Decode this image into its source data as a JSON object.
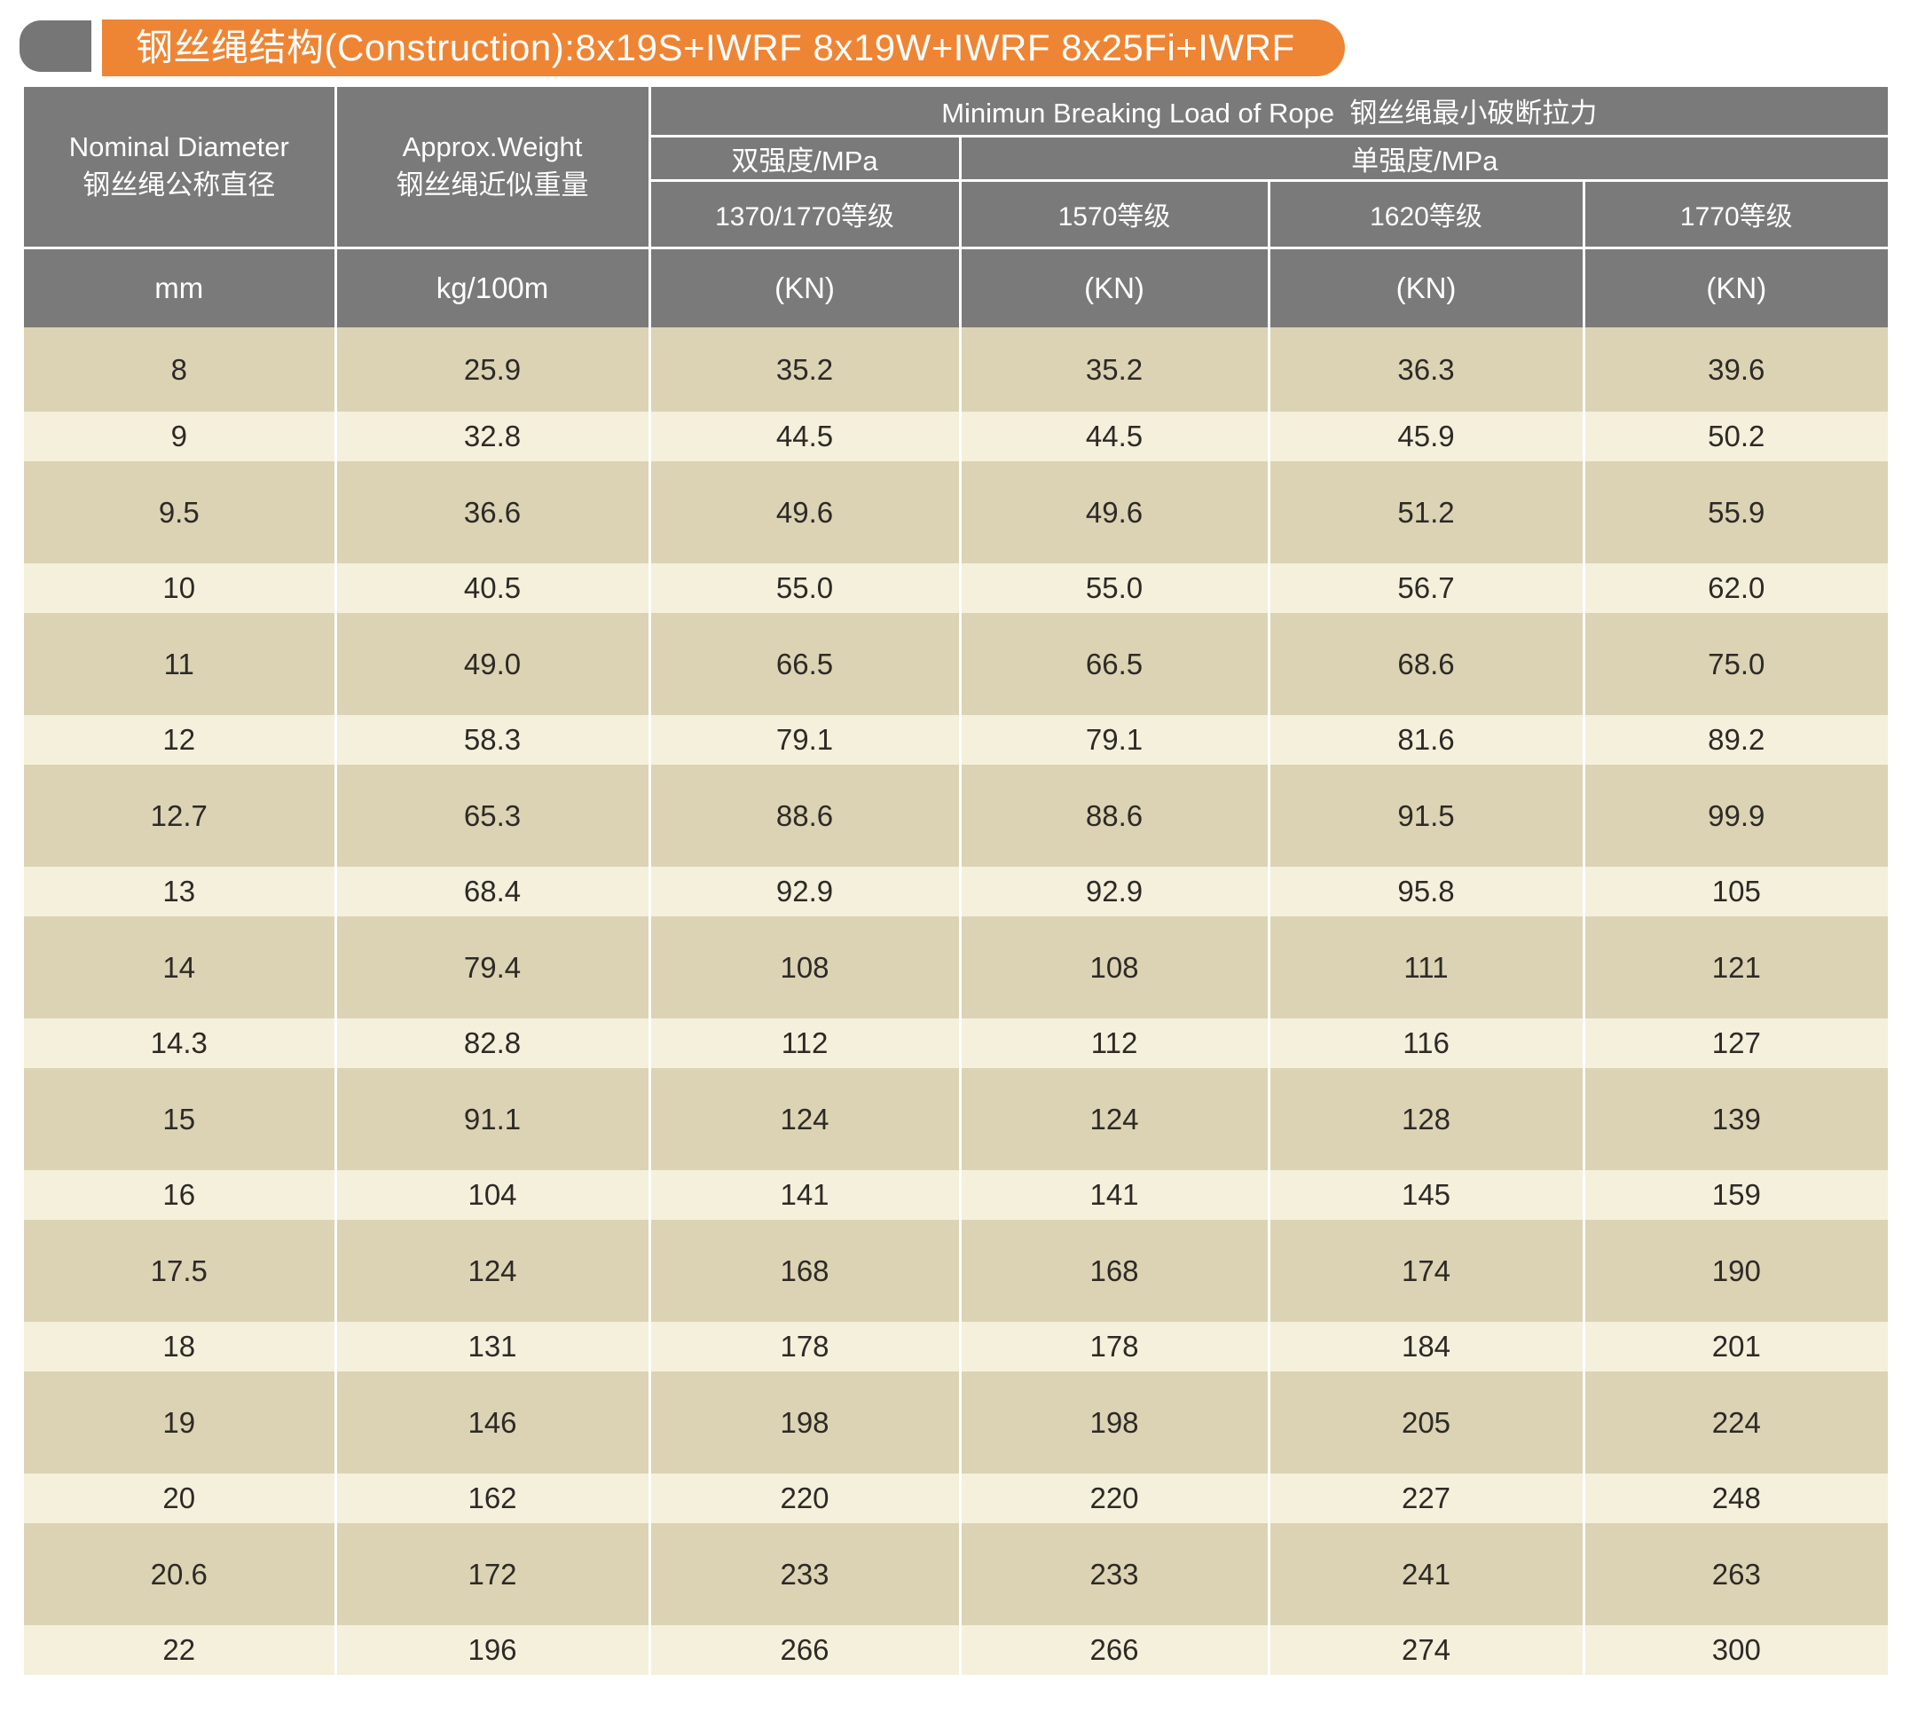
{
  "title": {
    "text": "钢丝绳结构(Construction):8x19S+IWRF 8x19W+IWRF 8x25Fi+IWRF"
  },
  "table": {
    "header": {
      "nominal": {
        "en": "Nominal Diameter",
        "zh": "钢丝绳公称直径"
      },
      "weight": {
        "en": "Approx.Weight",
        "zh": "钢丝绳近似重量"
      },
      "breaking_load": "Minimun Breaking Load of Rope  钢丝绳最小破断拉力",
      "dual_strength": "双强度/MPa",
      "single_strength": "单强度/MPa",
      "grades": [
        "1370/1770等级",
        "1570等级",
        "1620等级",
        "1770等级"
      ],
      "units": [
        "mm",
        "kg/100m",
        "(KN)",
        "(KN)",
        "(KN)",
        "(KN)"
      ]
    },
    "rows": [
      {
        "diameter": "8",
        "weight": "25.9",
        "loads": [
          "35.2",
          "35.2",
          "36.3",
          "39.6"
        ],
        "tone": "dark"
      },
      {
        "diameter": "9",
        "weight": "32.8",
        "loads": [
          "44.5",
          "44.5",
          "45.9",
          "50.2"
        ],
        "tone": "light"
      },
      {
        "diameter": "9.5",
        "weight": "36.6",
        "loads": [
          "49.6",
          "49.6",
          "51.2",
          "55.9"
        ],
        "tone": "dark"
      },
      {
        "diameter": "10",
        "weight": "40.5",
        "loads": [
          "55.0",
          "55.0",
          "56.7",
          "62.0"
        ],
        "tone": "light"
      },
      {
        "diameter": "11",
        "weight": "49.0",
        "loads": [
          "66.5",
          "66.5",
          "68.6",
          "75.0"
        ],
        "tone": "dark"
      },
      {
        "diameter": "12",
        "weight": "58.3",
        "loads": [
          "79.1",
          "79.1",
          "81.6",
          "89.2"
        ],
        "tone": "light"
      },
      {
        "diameter": "12.7",
        "weight": "65.3",
        "loads": [
          "88.6",
          "88.6",
          "91.5",
          "99.9"
        ],
        "tone": "dark"
      },
      {
        "diameter": "13",
        "weight": "68.4",
        "loads": [
          "92.9",
          "92.9",
          "95.8",
          "105"
        ],
        "tone": "light"
      },
      {
        "diameter": "14",
        "weight": "79.4",
        "loads": [
          "108",
          "108",
          "111",
          "121"
        ],
        "tone": "dark"
      },
      {
        "diameter": "14.3",
        "weight": "82.8",
        "loads": [
          "112",
          "112",
          "116",
          "127"
        ],
        "tone": "light"
      },
      {
        "diameter": "15",
        "weight": "91.1",
        "loads": [
          "124",
          "124",
          "128",
          "139"
        ],
        "tone": "dark"
      },
      {
        "diameter": "16",
        "weight": "104",
        "loads": [
          "141",
          "141",
          "145",
          "159"
        ],
        "tone": "light"
      },
      {
        "diameter": "17.5",
        "weight": "124",
        "loads": [
          "168",
          "168",
          "174",
          "190"
        ],
        "tone": "dark"
      },
      {
        "diameter": "18",
        "weight": "131",
        "loads": [
          "178",
          "178",
          "184",
          "201"
        ],
        "tone": "light"
      },
      {
        "diameter": "19",
        "weight": "146",
        "loads": [
          "198",
          "198",
          "205",
          "224"
        ],
        "tone": "dark"
      },
      {
        "diameter": "20",
        "weight": "162",
        "loads": [
          "220",
          "220",
          "227",
          "248"
        ],
        "tone": "light"
      },
      {
        "diameter": "20.6",
        "weight": "172",
        "loads": [
          "233",
          "233",
          "241",
          "263"
        ],
        "tone": "dark"
      },
      {
        "diameter": "22",
        "weight": "196",
        "loads": [
          "266",
          "266",
          "274",
          "300"
        ],
        "tone": "light"
      }
    ]
  },
  "colors": {
    "orange": "#EE8534",
    "header_gray": "#7A7A7A",
    "tab_gray": "#767676",
    "row_dark": "#DBD3B4",
    "row_light": "#F4F0DC",
    "text_dark": "#2D2A26",
    "line_white": "#FFFFFF"
  }
}
